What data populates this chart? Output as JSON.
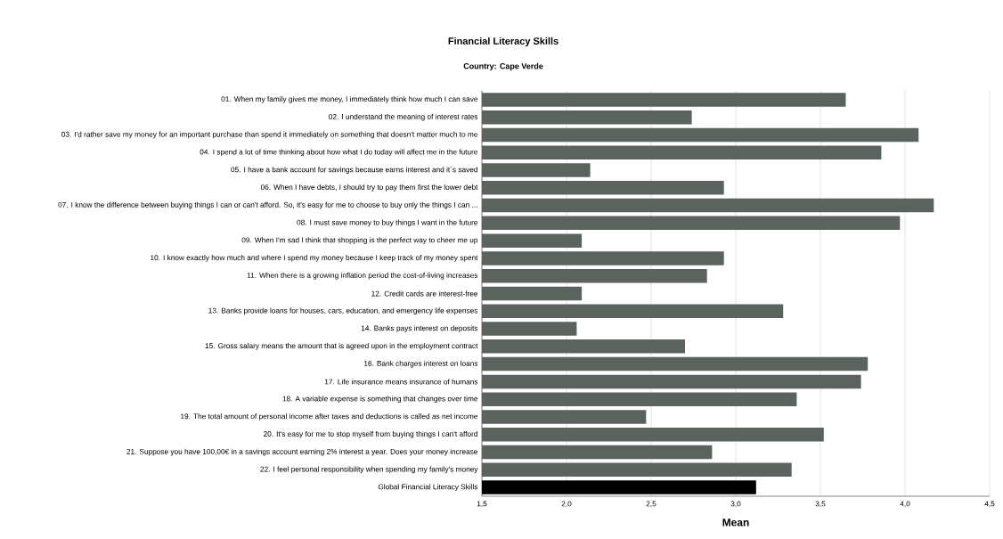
{
  "chart_data": {
    "type": "bar",
    "orientation": "horizontal",
    "title": "Financial Literacy Skills",
    "subtitle": "Country: Cape Verde",
    "xlabel": "Mean",
    "categories": [
      "01. When my family gives me money, I immediately think how much I can save",
      "02. I understand the meaning of interest rates",
      "03. I'd rather save my money for an important purchase than spend it immediately on something that doesn't matter much to me",
      "04. I spend a lot of time thinking about how what I do today will affect me in the future",
      "05. I have a bank account for savings because earns interest and it´s saved",
      "06. When I have debts, I should try to pay them first the lower debt",
      "07. I know the difference between buying things I can or can't afford. So, it's easy for me to choose to buy only the things I can ...",
      "08. I must save money to buy things I want in the future",
      "09. When I'm sad I think that shopping is the perfect way to cheer me up",
      "10. I know exactly how much and where I spend my money because I keep track of my money spent",
      "11. When there is a growing inflation period the cost-of-living increases",
      "12. Credit cards are interest-free",
      "13. Banks provide loans for houses, cars, education, and emergency life expenses",
      "14. Banks pays interest on deposits",
      "15. Gross salary means the amount that is agreed upon in the employment contract",
      "16. Bank charges interest on loans",
      "17. Life insurance means insurance of humans",
      "18. A variable expense is something that changes over time",
      "19. The total amount of personal income after taxes and deductions is called as net income",
      "20. It's easy for me to stop myself from buying things I can't afford",
      "21. Suppose you have 100,00€ in a savings account earning 2% interest a year. Does your money increase",
      "22. I feel personal responsibility when spending my family's money",
      "Global Financial Literacy Skills"
    ],
    "values": [
      3.65,
      2.74,
      4.08,
      3.86,
      2.14,
      2.93,
      4.17,
      3.97,
      2.09,
      2.93,
      2.83,
      2.09,
      3.28,
      2.06,
      2.7,
      3.78,
      3.74,
      3.36,
      2.47,
      3.52,
      2.86,
      3.33,
      3.12
    ],
    "colors": [
      "#5a635e",
      "#5a635e",
      "#5a635e",
      "#5a635e",
      "#5a635e",
      "#5a635e",
      "#5a635e",
      "#5a635e",
      "#5a635e",
      "#5a635e",
      "#5a635e",
      "#5a635e",
      "#5a635e",
      "#5a635e",
      "#5a635e",
      "#5a635e",
      "#5a635e",
      "#5a635e",
      "#5a635e",
      "#5a635e",
      "#5a635e",
      "#5a635e",
      "#000000"
    ],
    "xlim": [
      1.5,
      4.5
    ],
    "xticks": [
      {
        "value": 1.5,
        "label": "1,5"
      },
      {
        "value": 2.0,
        "label": "2,0"
      },
      {
        "value": 2.5,
        "label": "2,5"
      },
      {
        "value": 3.0,
        "label": "3,0"
      },
      {
        "value": 3.5,
        "label": "3,5"
      },
      {
        "value": 4.0,
        "label": "4,0"
      },
      {
        "value": 4.5,
        "label": "4,5"
      }
    ],
    "grid": "x"
  }
}
